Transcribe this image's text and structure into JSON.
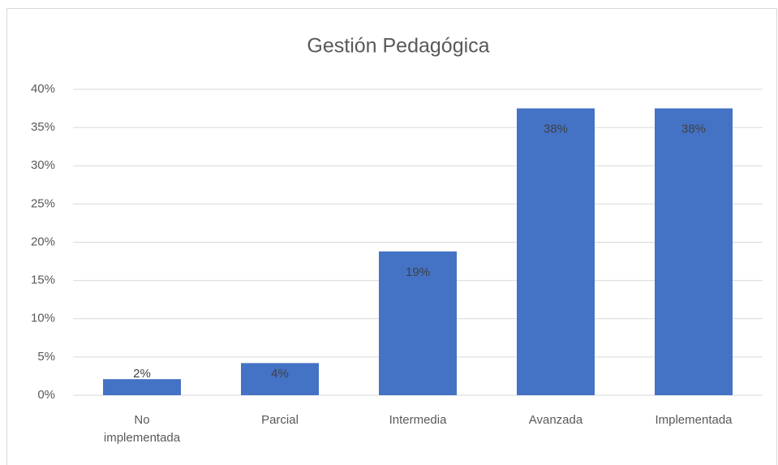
{
  "chart_data": {
    "type": "bar",
    "title": "Gestión Pedagógica",
    "categories": [
      "No implementada",
      "Parcial",
      "Intermedia",
      "Avanzada",
      "Implementada"
    ],
    "values": [
      2.1,
      4.2,
      18.8,
      37.5,
      37.5
    ],
    "value_labels": [
      "2%",
      "4%",
      "19%",
      "38%",
      "38%"
    ],
    "color": "#4472c4",
    "ylim": [
      0,
      40
    ],
    "yticks": [
      {
        "value": 0,
        "label": "0%"
      },
      {
        "value": 5,
        "label": "5%"
      },
      {
        "value": 10,
        "label": "10%"
      },
      {
        "value": 15,
        "label": "15%"
      },
      {
        "value": 20,
        "label": "20%"
      },
      {
        "value": 25,
        "label": "25%"
      },
      {
        "value": 30,
        "label": "30%"
      },
      {
        "value": 35,
        "label": "35%"
      },
      {
        "value": 40,
        "label": "40%"
      }
    ],
    "grid": true
  }
}
